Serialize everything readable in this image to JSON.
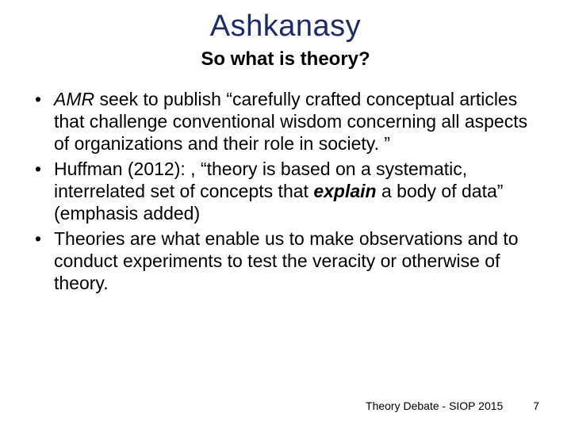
{
  "title": {
    "text": "Ashkanasy",
    "color": "#1f2a6b",
    "fontsize": 38
  },
  "subtitle": {
    "text": "So what is theory?",
    "fontsize": 24
  },
  "bullets": [
    {
      "runs": [
        {
          "text": "AMR",
          "style": "italic"
        },
        {
          "text": " seek to publish “carefully crafted conceptual articles that challenge conventional wisdom concerning all aspects of organizations and their role in society. ”",
          "style": "normal"
        }
      ]
    },
    {
      "runs": [
        {
          "text": "Huffman (2012): , “theory is based on a systematic, interrelated set of concepts that ",
          "style": "normal"
        },
        {
          "text": "explain",
          "style": "bolditalic"
        },
        {
          "text": " a body of data” (emphasis added)",
          "style": "normal"
        }
      ]
    },
    {
      "runs": [
        {
          "text": "Theories are what enable us to make observations and to conduct experiments to test the veracity or otherwise of theory.",
          "style": "normal"
        }
      ]
    }
  ],
  "bullet_fontsize": 23,
  "footer": {
    "text": "Theory Debate - SIOP 2015",
    "page": "7",
    "fontsize": 14
  },
  "colors": {
    "background": "#ffffff",
    "text": "#000000",
    "title": "#1f2a6b"
  }
}
